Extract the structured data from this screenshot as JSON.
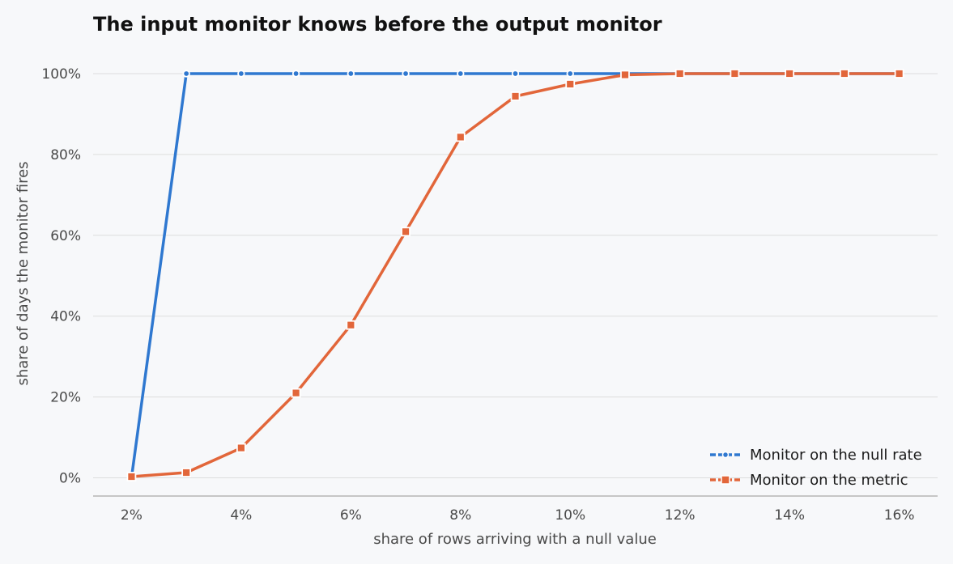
{
  "chart_data": {
    "type": "line",
    "title": "The input monitor knows before the output monitor",
    "xlabel": "share of rows arriving with a null value",
    "ylabel": "share of days the monitor fires",
    "x": [
      2,
      3,
      4,
      5,
      6,
      7,
      8,
      9,
      10,
      11,
      12,
      13,
      14,
      15,
      16
    ],
    "x_ticks": [
      2,
      4,
      6,
      8,
      10,
      12,
      14,
      16
    ],
    "x_tick_labels": [
      "2%",
      "4%",
      "6%",
      "8%",
      "10%",
      "12%",
      "14%",
      "16%"
    ],
    "xlim": [
      1.3,
      16.7
    ],
    "y_ticks": [
      0,
      20,
      40,
      60,
      80,
      100
    ],
    "y_tick_labels": [
      "0%",
      "20%",
      "40%",
      "60%",
      "80%",
      "100%"
    ],
    "ylim": [
      -4.5,
      105
    ],
    "grid": "horizontal",
    "legend_position": "bottom-right",
    "series": [
      {
        "name": "Monitor on the null rate",
        "marker": "circle",
        "color": "#2f78d0",
        "values": [
          0,
          100,
          100,
          100,
          100,
          100,
          100,
          100,
          100,
          100,
          100,
          100,
          100,
          100,
          100
        ]
      },
      {
        "name": "Monitor on the metric",
        "marker": "square",
        "color": "#e2663a",
        "values": [
          0.3,
          1.3,
          7.4,
          21,
          37.8,
          60.9,
          84.3,
          94.4,
          97.4,
          99.7,
          100,
          100,
          100,
          100,
          100
        ]
      }
    ]
  }
}
